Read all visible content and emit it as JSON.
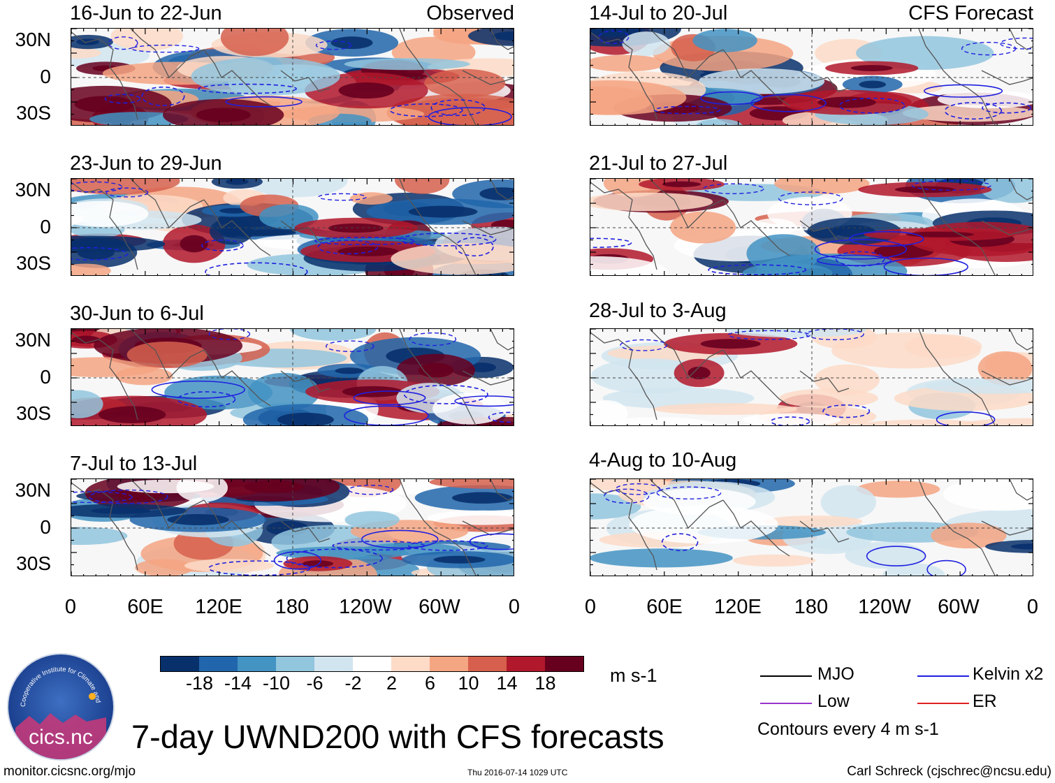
{
  "panels": [
    {
      "title": "16-Jun to 22-Jun",
      "label": "Observed"
    },
    {
      "title": "14-Jul to 20-Jul",
      "label": "CFS Forecast"
    },
    {
      "title": "23-Jun to 29-Jun",
      "label": ""
    },
    {
      "title": "21-Jul to 27-Jul",
      "label": ""
    },
    {
      "title": "30-Jun to 6-Jul",
      "label": ""
    },
    {
      "title": "28-Jul to 3-Aug",
      "label": ""
    },
    {
      "title": "7-Jul to 13-Jul",
      "label": ""
    },
    {
      "title": "4-Aug to 10-Aug",
      "label": ""
    }
  ],
  "y_ticks": [
    "30N",
    "0",
    "30S"
  ],
  "x_ticks": [
    "0",
    "60E",
    "120E",
    "180",
    "120W",
    "60W",
    "0"
  ],
  "colorbar": {
    "colors": [
      "#08306b",
      "#2166ac",
      "#4393c3",
      "#92c5de",
      "#d1e5f0",
      "#ffffff",
      "#fddbc7",
      "#f4a582",
      "#d6604d",
      "#b2182b",
      "#67001f"
    ],
    "labels": [
      "-18",
      "-14",
      "-10",
      "-6",
      "-2",
      "2",
      "6",
      "10",
      "14",
      "18"
    ],
    "units": "m s-1"
  },
  "legend": {
    "mjo": "MJO",
    "mjo_color": "#000000",
    "kelvin": "Kelvin x2",
    "kelvin_color": "#1f1fe0",
    "low": "Low",
    "low_color": "#9933cc",
    "er": "ER",
    "er_color": "#e01f1f",
    "contours": "Contours every 4 m s-1"
  },
  "logo_text": "cics.nc",
  "logo_ring": "Cooperative Institute for Climate and Satellites",
  "main_title": "7-day UWND200 with CFS forecasts",
  "footer": {
    "left": "monitor.cicsnc.org/mjo",
    "center": "Thu 2016-07-14 1029 UTC",
    "right": "Carl Schreck (cjschrec@ncsu.edu)"
  }
}
